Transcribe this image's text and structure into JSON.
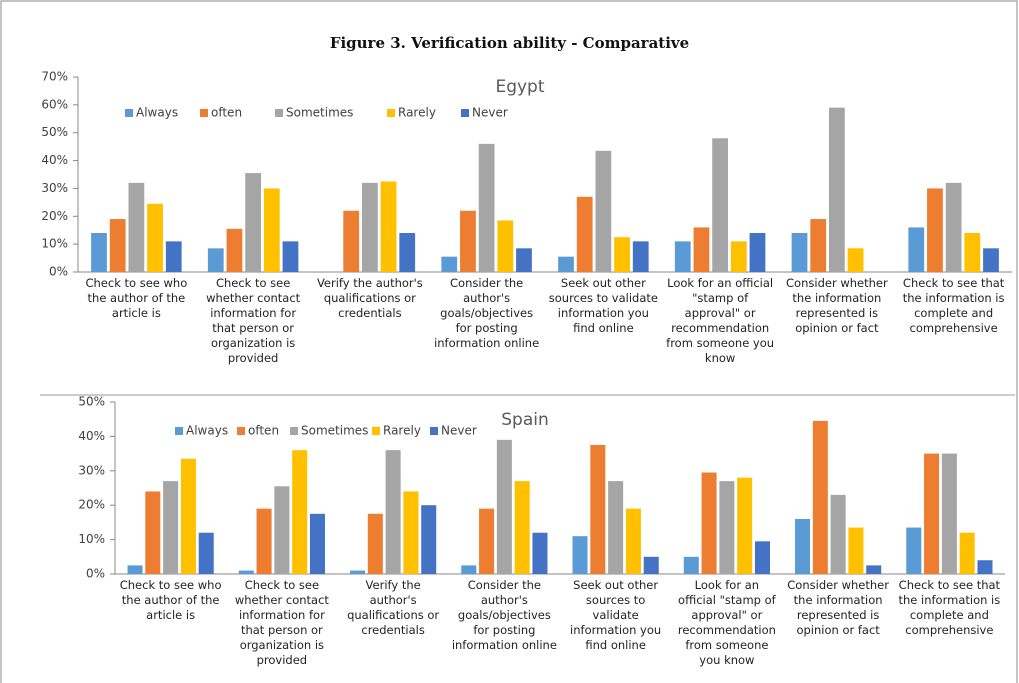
{
  "title": "Figure 3. Verification ability - Comparative",
  "chart_data": [
    {
      "type": "bar",
      "title": "Egypt",
      "categories": [
        "Check to see who the author of the article is",
        "Check to see whether contact information for that person or organization is provided",
        "Verify the author's qualifications or credentials",
        "Consider the author's goals/objectives for posting information online",
        "Seek out other sources to validate information you find online",
        "Look for an official \"stamp of approval\" or recommendation from someone you know",
        "Consider whether the information represented is opinion or fact",
        "Check to see that the information is complete and comprehensive"
      ],
      "series": [
        {
          "name": "Always",
          "color": "#5b9bd5",
          "values": [
            14,
            8.5,
            0,
            5.5,
            5.5,
            11,
            14,
            16
          ]
        },
        {
          "name": "often",
          "color": "#ed7d31",
          "values": [
            19,
            15.5,
            22,
            22,
            27,
            16,
            19,
            30
          ]
        },
        {
          "name": "Sometimes",
          "color": "#a5a5a5",
          "values": [
            32,
            35.5,
            32,
            46,
            43.5,
            48,
            59,
            32
          ]
        },
        {
          "name": "Rarely",
          "color": "#ffc000",
          "values": [
            24.5,
            30,
            32.5,
            18.5,
            12.5,
            11,
            8.5,
            14
          ]
        },
        {
          "name": "Never",
          "color": "#4472c4",
          "values": [
            11,
            11,
            14,
            8.5,
            11,
            14,
            0,
            8.5
          ]
        }
      ],
      "ylim": [
        0,
        70
      ],
      "yticks": [
        {
          "value": 0,
          "label": "0%"
        },
        {
          "value": 10,
          "label": "10%"
        },
        {
          "value": 20,
          "label": "20%"
        },
        {
          "value": 30,
          "label": "30%"
        },
        {
          "value": 40,
          "label": "40%"
        },
        {
          "value": 50,
          "label": "50%"
        },
        {
          "value": 60,
          "label": "60%"
        },
        {
          "value": 70,
          "label": "70%"
        }
      ]
    },
    {
      "type": "bar",
      "title": "Spain",
      "categories": [
        "Check to see who the author of the article is",
        "Check to see whether contact information for that person or organization is provided",
        "Verify the author's qualifications or credentials",
        "Consider the author's goals/objectives for posting information online",
        "Seek out other sources to validate information you find online",
        "Look for an official \"stamp of approval\" or recommendation from someone you know",
        "Consider whether the information represented is opinion or fact",
        "Check to see that the information is complete and comprehensive"
      ],
      "series": [
        {
          "name": "Always",
          "color": "#5b9bd5",
          "values": [
            2.5,
            1,
            1,
            2.5,
            11,
            5,
            16,
            13.5
          ]
        },
        {
          "name": "often",
          "color": "#ed7d31",
          "values": [
            24,
            19,
            17.5,
            19,
            37.5,
            29.5,
            44.5,
            35
          ]
        },
        {
          "name": "Sometimes",
          "color": "#a5a5a5",
          "values": [
            27,
            25.5,
            36,
            39,
            27,
            27,
            23,
            35
          ]
        },
        {
          "name": "Rarely",
          "color": "#ffc000",
          "values": [
            33.5,
            36,
            24,
            27,
            19,
            28,
            13.5,
            12
          ]
        },
        {
          "name": "Never",
          "color": "#4472c4",
          "values": [
            12,
            17.5,
            20,
            12,
            5,
            9.5,
            2.5,
            4
          ]
        }
      ],
      "ylim": [
        0,
        50
      ],
      "yticks": [
        {
          "value": 0,
          "label": "0%"
        },
        {
          "value": 10,
          "label": "10%"
        },
        {
          "value": 20,
          "label": "20%"
        },
        {
          "value": 30,
          "label": "30%"
        },
        {
          "value": 40,
          "label": "40%"
        },
        {
          "value": 50,
          "label": "50%"
        }
      ]
    }
  ]
}
